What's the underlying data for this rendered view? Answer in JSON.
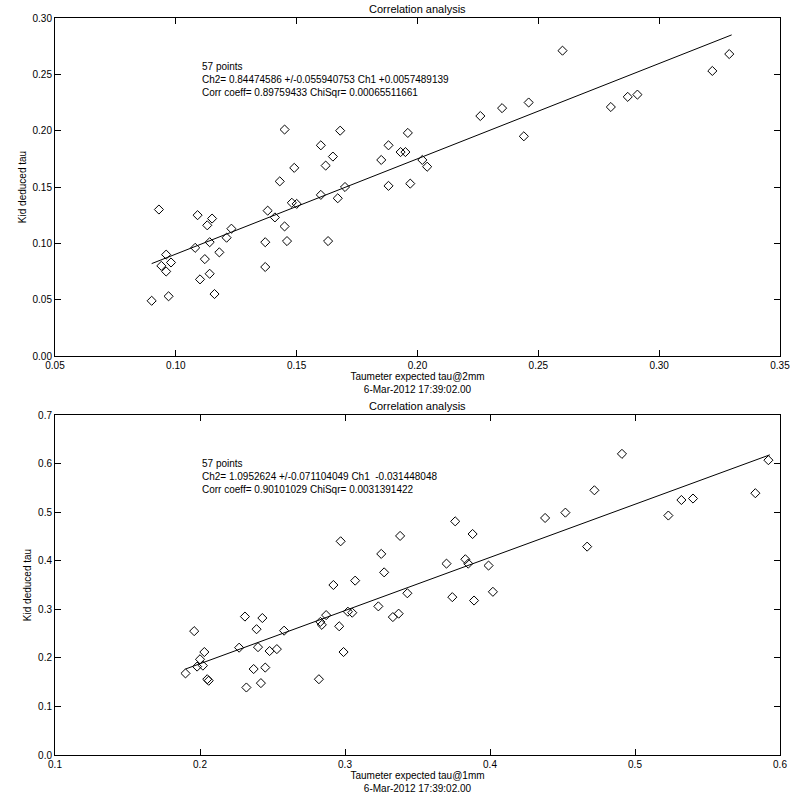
{
  "chart_data": [
    {
      "type": "scatter",
      "title": "Correlation analysis",
      "x_label": "Taumeter expected tau@2mm",
      "subtitle": "6-Mar-2012 17:39:02.00",
      "y_label": "Kid deduced tau",
      "annotations": [
        "57 points",
        "Ch2= 0.84474586 +/-0.055940753 Ch1 +0.0057489139",
        "Corr coeff= 0.89759433 ChiSqr= 0.00065511661"
      ],
      "xlim": [
        0.05,
        0.35
      ],
      "xticks": [
        0.05,
        {
          "value": 0.1,
          "label": "0.10"
        },
        0.15,
        {
          "value": 0.2,
          "label": "0.20"
        },
        0.25,
        {
          "value": 0.3,
          "label": "0.30"
        },
        0.35
      ],
      "ylim": [
        0,
        0.3
      ],
      "yticks": [
        {
          "value": 0,
          "label": "0.00"
        },
        0.05,
        {
          "value": 0.1,
          "label": "0.10"
        },
        0.15,
        {
          "value": 0.2,
          "label": "0.20"
        },
        0.25,
        {
          "value": 0.3,
          "label": "0.30"
        }
      ],
      "grid": false,
      "series": [
        {
          "type": "scatter",
          "marker": "diamond-open",
          "color": "#000000",
          "x": [
            0.09,
            0.093,
            0.094,
            0.096,
            0.096,
            0.097,
            0.098,
            0.108,
            0.109,
            0.11,
            0.112,
            0.113,
            0.114,
            0.114,
            0.115,
            0.116,
            0.118,
            0.121,
            0.123,
            0.137,
            0.137,
            0.138,
            0.141,
            0.143,
            0.145,
            0.145,
            0.146,
            0.148,
            0.149,
            0.15,
            0.16,
            0.16,
            0.162,
            0.163,
            0.165,
            0.167,
            0.168,
            0.17,
            0.185,
            0.188,
            0.188,
            0.193,
            0.195,
            0.196,
            0.197,
            0.202,
            0.204,
            0.226,
            0.235,
            0.244,
            0.246,
            0.26,
            0.28,
            0.287,
            0.291,
            0.322,
            0.329
          ],
          "values": [
            0.049,
            0.13,
            0.08,
            0.075,
            0.09,
            0.053,
            0.083,
            0.096,
            0.125,
            0.068,
            0.086,
            0.116,
            0.101,
            0.073,
            0.122,
            0.055,
            0.092,
            0.105,
            0.113,
            0.101,
            0.079,
            0.129,
            0.123,
            0.155,
            0.201,
            0.115,
            0.102,
            0.136,
            0.167,
            0.135,
            0.143,
            0.187,
            0.169,
            0.102,
            0.177,
            0.14,
            0.2,
            0.15,
            0.174,
            0.187,
            0.151,
            0.181,
            0.181,
            0.198,
            0.153,
            0.174,
            0.168,
            0.213,
            0.22,
            0.195,
            0.225,
            0.271,
            0.221,
            0.23,
            0.232,
            0.253,
            0.268
          ]
        },
        {
          "type": "line",
          "line_style": "solid",
          "color": "#000000",
          "x": [
            0.09,
            0.33
          ],
          "values": [
            0.082,
            0.285
          ]
        }
      ]
    },
    {
      "type": "scatter",
      "title": "Correlation analysis",
      "x_label": "Taumeter expected tau@1mm",
      "subtitle": "6-Mar-2012 17:39:02.00",
      "y_label": "Kid deduced tau",
      "annotations": [
        "57 points",
        "Ch2= 1.0952624 +/-0.071104049 Ch1  -0.031448048",
        "Corr coeff= 0.90101029 ChiSqr= 0.0031391422"
      ],
      "xlim": [
        0.1,
        0.6
      ],
      "xticks": [
        0.1,
        0.2,
        0.3,
        0.4,
        0.5,
        0.6
      ],
      "ylim": [
        0,
        0.7
      ],
      "yticks": [
        {
          "value": 0,
          "label": "0.0"
        },
        0.1,
        0.2,
        0.3,
        0.4,
        0.5,
        0.6,
        0.7
      ],
      "grid": false,
      "series": [
        {
          "type": "scatter",
          "marker": "diamond-open",
          "color": "#000000",
          "x": [
            0.19,
            0.196,
            0.198,
            0.2,
            0.202,
            0.203,
            0.205,
            0.206,
            0.227,
            0.231,
            0.232,
            0.237,
            0.239,
            0.24,
            0.242,
            0.243,
            0.245,
            0.248,
            0.253,
            0.258,
            0.282,
            0.283,
            0.284,
            0.287,
            0.292,
            0.296,
            0.297,
            0.299,
            0.302,
            0.305,
            0.307,
            0.323,
            0.325,
            0.327,
            0.333,
            0.337,
            0.338,
            0.343,
            0.37,
            0.374,
            0.376,
            0.383,
            0.385,
            0.388,
            0.389,
            0.399,
            0.402,
            0.438,
            0.452,
            0.467,
            0.472,
            0.491,
            0.523,
            0.532,
            0.54,
            0.583,
            0.592
          ],
          "values": [
            0.168,
            0.255,
            0.182,
            0.197,
            0.184,
            0.212,
            0.156,
            0.153,
            0.221,
            0.285,
            0.139,
            0.177,
            0.259,
            0.222,
            0.148,
            0.282,
            0.18,
            0.214,
            0.218,
            0.256,
            0.156,
            0.274,
            0.268,
            0.288,
            0.35,
            0.265,
            0.44,
            0.212,
            0.295,
            0.293,
            0.359,
            0.306,
            0.414,
            0.376,
            0.284,
            0.291,
            0.451,
            0.333,
            0.394,
            0.325,
            0.481,
            0.403,
            0.394,
            0.455,
            0.318,
            0.39,
            0.336,
            0.488,
            0.499,
            0.429,
            0.545,
            0.62,
            0.493,
            0.525,
            0.528,
            0.539,
            0.607
          ]
        },
        {
          "type": "line",
          "line_style": "solid",
          "color": "#000000",
          "x": [
            0.19,
            0.593
          ],
          "values": [
            0.177,
            0.618
          ]
        }
      ]
    }
  ]
}
